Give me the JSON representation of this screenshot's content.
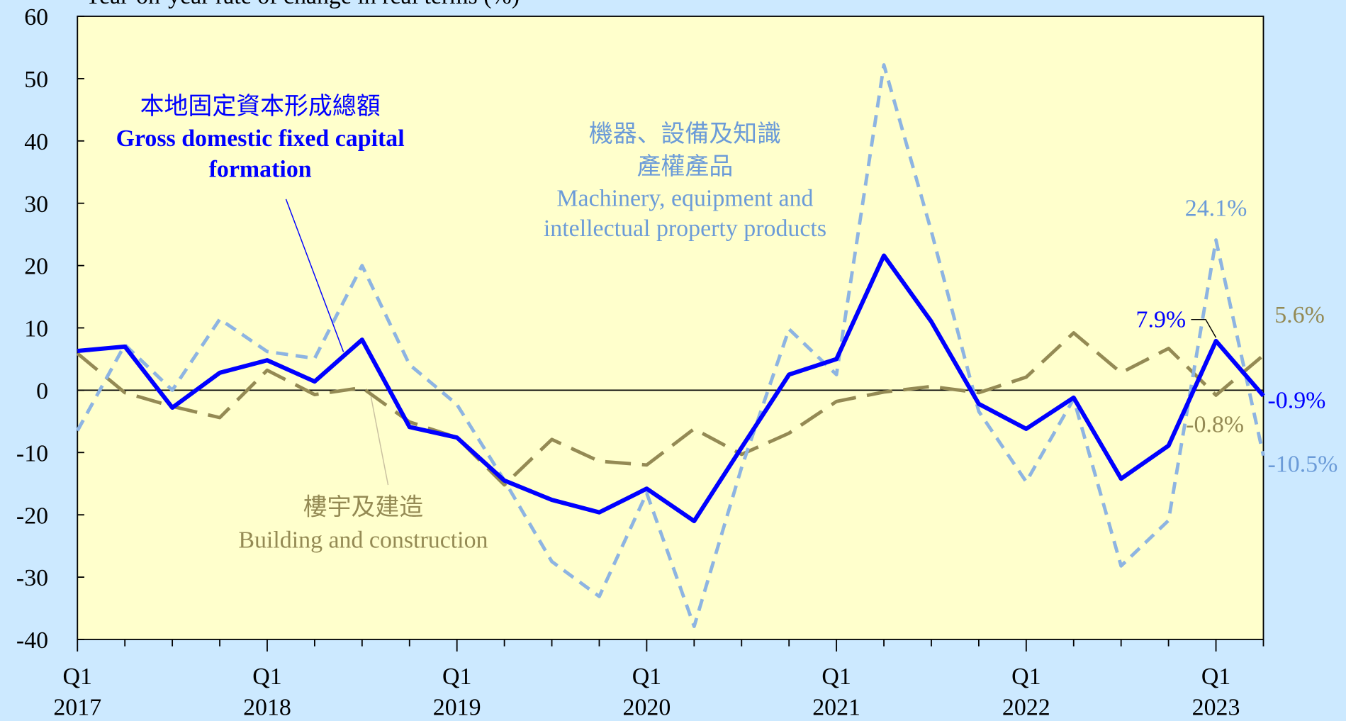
{
  "chart_data": {
    "type": "line",
    "y_axis_label": "Year-on-year rate of change in real terms (%)",
    "categories": [
      "Q1 2017",
      null,
      null,
      null,
      "Q1 2018",
      null,
      null,
      null,
      "Q1 2019",
      null,
      null,
      null,
      "Q1 2020",
      null,
      null,
      null,
      "Q1 2021",
      null,
      null,
      null,
      "Q1 2022",
      null,
      null,
      null,
      "Q1 2023",
      null
    ],
    "ylim": [
      -40,
      60
    ],
    "yticks": [
      -40,
      -30,
      -20,
      -10,
      0,
      10,
      20,
      30,
      40,
      50,
      60
    ],
    "series": [
      {
        "name": "Gross domestic fixed capital formation",
        "name_zh": "本地固定資本形成總額",
        "color": "#0000ff",
        "style": "solid",
        "values": [
          6.3,
          7.0,
          -2.8,
          2.8,
          4.8,
          1.4,
          8.1,
          -5.9,
          -7.6,
          -14.5,
          -17.6,
          -19.6,
          -15.8,
          -21.0,
          -9.2,
          2.5,
          5.0,
          21.6,
          11.0,
          -2.2,
          -6.2,
          -1.2,
          -14.2,
          -8.9,
          7.9,
          -0.9
        ],
        "value_labels": [
          null,
          null,
          null,
          null,
          null,
          null,
          null,
          null,
          null,
          null,
          null,
          null,
          null,
          null,
          null,
          null,
          null,
          null,
          null,
          null,
          null,
          null,
          null,
          null,
          "7.9%",
          "-0.9%"
        ]
      },
      {
        "name": "Machinery, equipment and intellectual property products",
        "name_zh": "機器、設備及知識產權產品",
        "color": "#8db4e2",
        "style": "dashed",
        "values": [
          -6.5,
          7.3,
          0.0,
          11.4,
          6.2,
          5.1,
          20.0,
          4.1,
          -2.3,
          -14.5,
          -27.5,
          -33.1,
          -16.5,
          -37.9,
          -12.4,
          9.8,
          2.5,
          52.2,
          25.5,
          -3.4,
          -14.7,
          -1.4,
          -28.2,
          -20.9,
          24.1,
          -10.5
        ],
        "value_labels": [
          null,
          null,
          null,
          null,
          null,
          null,
          null,
          null,
          null,
          null,
          null,
          null,
          null,
          null,
          null,
          null,
          null,
          null,
          null,
          null,
          null,
          null,
          null,
          null,
          "24.1%",
          "-10.5%"
        ]
      },
      {
        "name": "Building and construction",
        "name_zh": "樓宇及建造",
        "color": "#948a54",
        "style": "longdash",
        "values": [
          5.9,
          -0.4,
          -2.6,
          -4.4,
          3.2,
          -0.7,
          0.4,
          -5.1,
          -7.6,
          -15.2,
          -7.9,
          -11.4,
          -12.0,
          -6.2,
          -10.3,
          -6.9,
          -1.8,
          -0.3,
          0.6,
          -0.4,
          2.1,
          9.2,
          2.8,
          6.7,
          -0.8,
          5.6
        ],
        "value_labels": [
          null,
          null,
          null,
          null,
          null,
          null,
          null,
          null,
          null,
          null,
          null,
          null,
          null,
          null,
          null,
          null,
          null,
          null,
          null,
          null,
          null,
          null,
          null,
          null,
          "-0.8%",
          "5.6%"
        ]
      }
    ]
  }
}
